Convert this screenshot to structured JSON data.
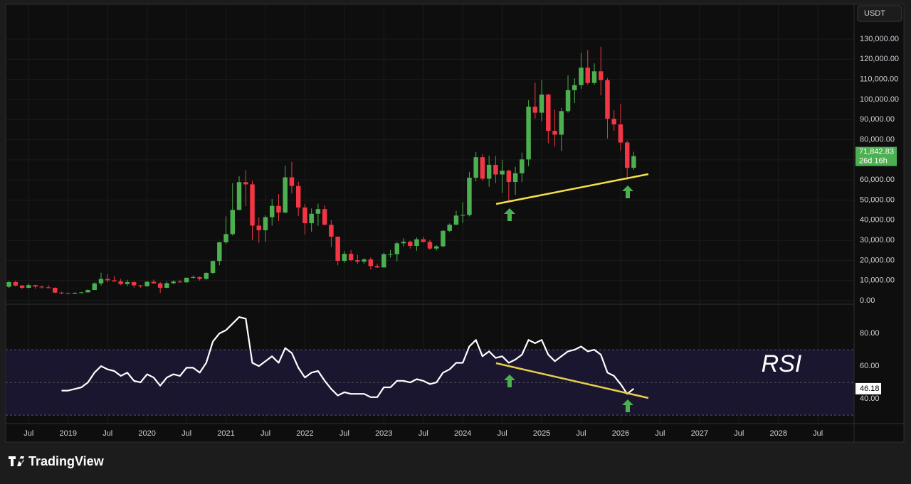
{
  "chart_data": [
    {
      "type": "candlestick",
      "currency": "USDT",
      "up_color": "#4caf50",
      "down_color": "#f23645",
      "grid": true,
      "xlim": [
        "2018-04",
        "2028-12"
      ],
      "x": [
        "2018-04",
        "2018-05",
        "2018-06",
        "2018-07",
        "2018-08",
        "2018-09",
        "2018-10",
        "2018-11",
        "2018-12",
        "2019-01",
        "2019-02",
        "2019-03",
        "2019-04",
        "2019-05",
        "2019-06",
        "2019-07",
        "2019-08",
        "2019-09",
        "2019-10",
        "2019-11",
        "2019-12",
        "2020-01",
        "2020-02",
        "2020-03",
        "2020-04",
        "2020-05",
        "2020-06",
        "2020-07",
        "2020-08",
        "2020-09",
        "2020-10",
        "2020-11",
        "2020-12",
        "2021-01",
        "2021-02",
        "2021-03",
        "2021-04",
        "2021-05",
        "2021-06",
        "2021-07",
        "2021-08",
        "2021-09",
        "2021-10",
        "2021-11",
        "2021-12",
        "2022-01",
        "2022-02",
        "2022-03",
        "2022-04",
        "2022-05",
        "2022-06",
        "2022-07",
        "2022-08",
        "2022-09",
        "2022-10",
        "2022-11",
        "2022-12",
        "2023-01",
        "2023-02",
        "2023-03",
        "2023-04",
        "2023-05",
        "2023-06",
        "2023-07",
        "2023-08",
        "2023-09",
        "2023-10",
        "2023-11",
        "2023-12",
        "2024-01",
        "2024-02",
        "2024-03",
        "2024-04",
        "2024-05",
        "2024-06",
        "2024-07",
        "2024-08",
        "2024-09",
        "2024-10",
        "2024-11",
        "2024-12",
        "2025-01",
        "2025-02",
        "2025-03",
        "2025-04",
        "2025-05",
        "2025-06",
        "2025-07",
        "2025-08",
        "2025-09",
        "2025-10",
        "2025-11",
        "2025-12",
        "2026-01",
        "2026-02",
        "2026-03"
      ],
      "open": [
        6900,
        9200,
        7500,
        6400,
        7700,
        7000,
        6600,
        6400,
        4000,
        3700,
        3500,
        3900,
        4100,
        5300,
        8600,
        10800,
        10100,
        9600,
        8300,
        9200,
        7600,
        7200,
        9400,
        8600,
        6400,
        8700,
        9500,
        9100,
        11400,
        11700,
        10800,
        13800,
        19700,
        29000,
        33100,
        45100,
        58900,
        57800,
        37300,
        35000,
        41500,
        47100,
        43800,
        61300,
        57000,
        46300,
        38500,
        43200,
        45500,
        37700,
        31800,
        19800,
        23300,
        20100,
        19400,
        20500,
        17200,
        16500,
        23100,
        23100,
        28500,
        29300,
        27200,
        30500,
        29200,
        25900,
        27000,
        34700,
        37700,
        42300,
        42600,
        61100,
        71300,
        60600,
        67500,
        62700,
        64600,
        59000,
        63300,
        70200,
        96400,
        93400,
        102400,
        84400,
        82500,
        94200,
        104600,
        107100,
        115800,
        108200,
        114000,
        109600,
        90400,
        87600,
        78600,
        66000
      ],
      "high": [
        9800,
        10000,
        7800,
        8500,
        7800,
        7400,
        7700,
        6600,
        4400,
        4100,
        4200,
        4300,
        5600,
        9100,
        13900,
        13200,
        12300,
        10900,
        10400,
        9500,
        7800,
        9600,
        10500,
        9200,
        9500,
        10100,
        10400,
        11400,
        12500,
        12100,
        14100,
        19900,
        29300,
        41900,
        58400,
        61800,
        64900,
        59600,
        41300,
        42400,
        50500,
        52900,
        67000,
        69000,
        59100,
        48000,
        45800,
        48200,
        47400,
        40000,
        31900,
        24700,
        25200,
        22800,
        21100,
        21500,
        18400,
        23800,
        25200,
        29200,
        31000,
        29800,
        31400,
        31800,
        30200,
        27500,
        35200,
        38400,
        44700,
        48900,
        64000,
        73800,
        72800,
        72000,
        71900,
        70000,
        65100,
        66500,
        73600,
        99600,
        108300,
        109600,
        102800,
        95000,
        95800,
        112000,
        110500,
        123200,
        124500,
        117900,
        126200,
        110600,
        94600,
        97900,
        79500,
        74000
      ],
      "low": [
        6400,
        7000,
        5800,
        6100,
        5900,
        6100,
        6200,
        3700,
        3200,
        3400,
        3400,
        3700,
        4100,
        5300,
        7500,
        9100,
        9300,
        7700,
        7300,
        6500,
        6400,
        6900,
        8500,
        3900,
        6200,
        8100,
        8900,
        8900,
        11000,
        10000,
        10400,
        13200,
        17600,
        28100,
        32400,
        45000,
        47000,
        30000,
        28800,
        29300,
        37300,
        39600,
        43300,
        53300,
        42000,
        32900,
        34300,
        37200,
        37600,
        26700,
        17600,
        18800,
        19600,
        18200,
        18200,
        15500,
        16300,
        16500,
        21400,
        19600,
        26900,
        25900,
        24800,
        28900,
        25200,
        24900,
        26600,
        34100,
        37600,
        38600,
        41900,
        59300,
        59600,
        56600,
        58500,
        53500,
        49100,
        52600,
        58900,
        66800,
        90500,
        89200,
        78200,
        76600,
        74400,
        93400,
        98200,
        105300,
        107300,
        107300,
        102000,
        80600,
        84400,
        74600,
        60000,
        65000
      ],
      "close": [
        9200,
        7500,
        6400,
        7700,
        7000,
        6600,
        6400,
        4000,
        3700,
        3500,
        3900,
        4100,
        5300,
        8600,
        10800,
        10100,
        9600,
        8300,
        9200,
        7600,
        7200,
        9400,
        8600,
        6400,
        8700,
        9500,
        9100,
        11400,
        11700,
        10800,
        13800,
        19700,
        29000,
        33100,
        45100,
        58900,
        57800,
        37300,
        35000,
        41500,
        47100,
        43800,
        61300,
        57000,
        46300,
        38500,
        43200,
        45500,
        37700,
        31800,
        19800,
        23300,
        20100,
        19400,
        20500,
        17200,
        16500,
        23100,
        23100,
        28500,
        29300,
        27200,
        30500,
        29200,
        25900,
        27000,
        34700,
        37700,
        42300,
        42600,
        61100,
        71300,
        60600,
        67500,
        62700,
        64600,
        59000,
        63300,
        70200,
        96400,
        93400,
        102400,
        84400,
        82500,
        94200,
        104600,
        107100,
        115800,
        108200,
        114000,
        109600,
        90400,
        87600,
        78600,
        66000,
        71842.83
      ],
      "last_price_label": "71,842.83",
      "countdown": "26d 16h",
      "ylim": [
        -1400,
        146600
      ],
      "yticks": [
        {
          "value": 0,
          "label": "0.00"
        },
        {
          "value": 10000,
          "label": "10,000.00"
        },
        {
          "value": 20000,
          "label": "20,000.00"
        },
        {
          "value": 30000,
          "label": "30,000.00"
        },
        {
          "value": 40000,
          "label": "40,000.00"
        },
        {
          "value": 50000,
          "label": "50,000.00"
        },
        {
          "value": 60000,
          "label": "60,000.00"
        },
        {
          "value": 70000,
          "label": "70,000.00"
        },
        {
          "value": 80000,
          "label": "80,000.00"
        },
        {
          "value": 90000,
          "label": "90,000.00"
        },
        {
          "value": 100000,
          "label": "100,000.00"
        },
        {
          "value": 110000,
          "label": "110,000.00"
        },
        {
          "value": 120000,
          "label": "120,000.00"
        },
        {
          "value": 130000,
          "label": "130,000.00"
        }
      ]
    },
    {
      "type": "line",
      "annotation": "RSI",
      "grid": true,
      "xlim": [
        "2018-04",
        "2028-12"
      ],
      "x": [
        "2018-04",
        "2018-05",
        "2018-06",
        "2018-07",
        "2018-08",
        "2018-09",
        "2018-10",
        "2018-11",
        "2018-12",
        "2019-01",
        "2019-02",
        "2019-03",
        "2019-04",
        "2019-05",
        "2019-06",
        "2019-07",
        "2019-08",
        "2019-09",
        "2019-10",
        "2019-11",
        "2019-12",
        "2020-01",
        "2020-02",
        "2020-03",
        "2020-04",
        "2020-05",
        "2020-06",
        "2020-07",
        "2020-08",
        "2020-09",
        "2020-10",
        "2020-11",
        "2020-12",
        "2021-01",
        "2021-02",
        "2021-03",
        "2021-04",
        "2021-05",
        "2021-06",
        "2021-07",
        "2021-08",
        "2021-09",
        "2021-10",
        "2021-11",
        "2021-12",
        "2022-01",
        "2022-02",
        "2022-03",
        "2022-04",
        "2022-05",
        "2022-06",
        "2022-07",
        "2022-08",
        "2022-09",
        "2022-10",
        "2022-11",
        "2022-12",
        "2023-01",
        "2023-02",
        "2023-03",
        "2023-04",
        "2023-05",
        "2023-06",
        "2023-07",
        "2023-08",
        "2023-09",
        "2023-10",
        "2023-11",
        "2023-12",
        "2024-01",
        "2024-02",
        "2024-03",
        "2024-04",
        "2024-05",
        "2024-06",
        "2024-07",
        "2024-08",
        "2024-09",
        "2024-10",
        "2024-11",
        "2024-12",
        "2025-01",
        "2025-02",
        "2025-03",
        "2025-04",
        "2025-05",
        "2025-06",
        "2025-07",
        "2025-08",
        "2025-09",
        "2025-10",
        "2025-11",
        "2025-12",
        "2026-01",
        "2026-02",
        "2026-03"
      ],
      "series": [
        {
          "name": "RSI",
          "color": "#ffffff",
          "values": [
            null,
            null,
            null,
            null,
            null,
            null,
            null,
            null,
            45,
            45,
            46,
            47,
            50,
            56,
            60,
            58,
            57,
            54,
            56,
            51,
            50,
            55,
            53,
            48,
            53,
            55,
            54,
            59,
            59,
            56,
            62,
            75,
            80,
            82,
            86,
            90,
            89,
            62,
            60,
            63,
            66,
            62,
            71,
            68,
            59,
            53,
            56,
            57,
            51,
            46,
            42,
            44,
            43,
            43,
            43,
            41,
            41,
            47,
            47,
            51,
            51,
            50,
            52,
            51,
            49,
            50,
            56,
            58,
            62,
            62,
            72,
            76,
            66,
            69,
            65,
            66,
            62,
            64,
            67,
            76,
            74,
            76,
            67,
            63,
            66,
            69,
            70,
            72,
            69,
            70,
            67,
            56,
            54,
            49,
            43,
            46.18
          ]
        }
      ],
      "levels": [
        30,
        50,
        70
      ],
      "band_color": "#1b1630",
      "ylim": [
        25.7,
        97.0
      ],
      "yticks": [
        {
          "value": 80,
          "label": "80.00"
        },
        {
          "value": 60,
          "label": "60.00"
        },
        {
          "value": 40,
          "label": "40.00"
        }
      ],
      "xticks": [
        {
          "value": "2018-07",
          "label": "Jul"
        },
        {
          "value": "2019-01",
          "label": "2019"
        },
        {
          "value": "2019-07",
          "label": "Jul"
        },
        {
          "value": "2020-01",
          "label": "2020"
        },
        {
          "value": "2020-07",
          "label": "Jul"
        },
        {
          "value": "2021-01",
          "label": "2021"
        },
        {
          "value": "2021-07",
          "label": "Jul"
        },
        {
          "value": "2022-01",
          "label": "2022"
        },
        {
          "value": "2022-07",
          "label": "Jul"
        },
        {
          "value": "2023-01",
          "label": "2023"
        },
        {
          "value": "2023-07",
          "label": "Jul"
        },
        {
          "value": "2024-01",
          "label": "2024"
        },
        {
          "value": "2024-07",
          "label": "Jul"
        },
        {
          "value": "2025-01",
          "label": "2025"
        },
        {
          "value": "2025-07",
          "label": "Jul"
        },
        {
          "value": "2026-01",
          "label": "2026"
        },
        {
          "value": "2026-07",
          "label": "Jul"
        },
        {
          "value": "2027-01",
          "label": "2027"
        },
        {
          "value": "2027-07",
          "label": "Jul"
        },
        {
          "value": "2028-01",
          "label": "2028"
        },
        {
          "value": "2028-07",
          "label": "Jul"
        }
      ]
    }
  ],
  "footer": {
    "brand": "TradingView"
  }
}
